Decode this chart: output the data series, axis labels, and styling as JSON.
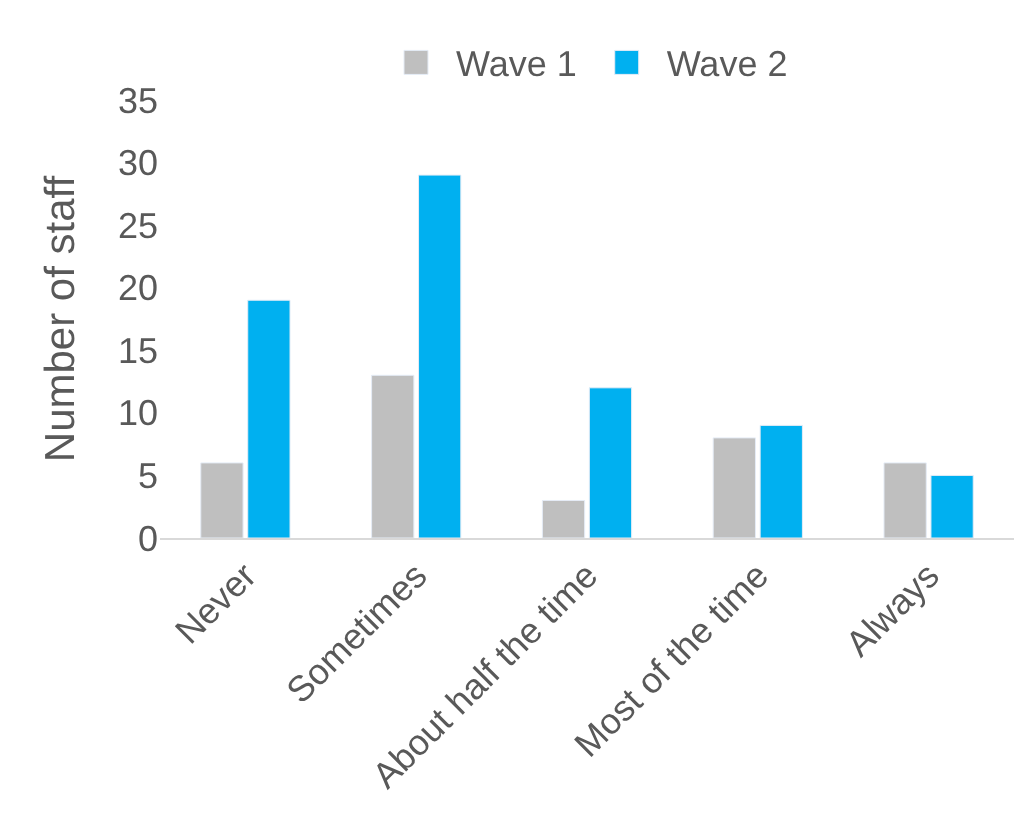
{
  "chart_data": {
    "type": "bar",
    "ylabel": "Number of staff",
    "categories": [
      "Never",
      "Sometimes",
      "About half the time",
      "Most of the time",
      "Always"
    ],
    "series": [
      {
        "name": "Wave 1",
        "color": "#bfbfbf",
        "values": [
          6,
          13,
          3,
          8,
          6
        ]
      },
      {
        "name": "Wave 2",
        "color": "#00b0f0",
        "values": [
          19,
          29,
          12,
          9,
          5
        ]
      }
    ],
    "ylim": [
      0,
      35
    ],
    "yticks": [
      0,
      5,
      10,
      15,
      20,
      25,
      30,
      35
    ],
    "grid": false,
    "legend": "top"
  }
}
